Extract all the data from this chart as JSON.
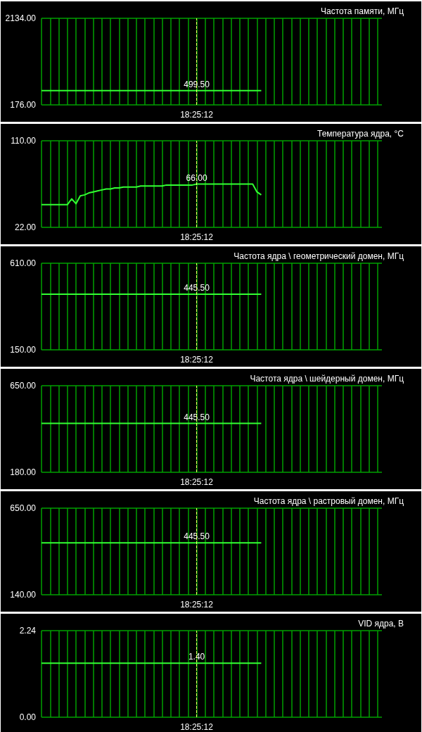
{
  "chart_data": [
    {
      "type": "line",
      "title": "Частота памяти, МГц",
      "categories": [
        null,
        null,
        null,
        null,
        null,
        null,
        null,
        null,
        null,
        null,
        null,
        null,
        null,
        null,
        null,
        null,
        null,
        null,
        null,
        null,
        null,
        null,
        null,
        null,
        null,
        null,
        null,
        null,
        null,
        null,
        null,
        null,
        null,
        null,
        null,
        null,
        "18:25:12",
        null,
        null,
        null,
        null,
        null,
        null,
        null,
        null,
        null,
        null,
        null,
        null,
        null,
        null,
        null,
        null,
        null,
        null,
        null,
        null,
        null,
        null,
        null,
        null,
        null,
        null,
        null,
        null,
        null,
        null,
        null,
        null,
        null,
        null,
        null,
        null,
        null,
        null,
        null,
        null,
        null,
        null,
        null
      ],
      "series": [
        {
          "color": "#33ff33",
          "values": [
            499.5,
            499.5,
            499.5,
            499.5,
            499.5,
            499.5,
            499.5,
            499.5,
            499.5,
            499.5,
            499.5,
            499.5,
            499.5,
            499.5,
            499.5,
            499.5,
            499.5,
            499.5,
            499.5,
            499.5,
            499.5,
            499.5,
            499.5,
            499.5,
            499.5,
            499.5,
            499.5,
            499.5,
            499.5,
            499.5,
            499.5,
            499.5,
            499.5,
            499.5,
            499.5,
            499.5,
            499.5,
            499.5,
            499.5,
            499.5,
            499.5,
            499.5,
            499.5,
            499.5,
            499.5,
            499.5,
            499.5,
            499.5,
            499.5,
            499.5,
            499.5,
            499.5,
            null,
            null,
            null,
            null,
            null,
            null,
            null,
            null,
            null,
            null,
            null,
            null,
            null,
            null,
            null,
            null,
            null,
            null,
            null,
            null,
            null,
            null,
            null,
            null,
            null,
            null,
            null,
            null
          ],
          "value_labels": [
            null,
            null,
            null,
            null,
            null,
            null,
            null,
            null,
            null,
            null,
            null,
            null,
            null,
            null,
            null,
            null,
            null,
            null,
            null,
            null,
            null,
            null,
            null,
            null,
            null,
            null,
            null,
            null,
            null,
            null,
            null,
            null,
            null,
            null,
            null,
            null,
            "499.50",
            null,
            null,
            null,
            null,
            null,
            null,
            null,
            null,
            null,
            null,
            null,
            null,
            null,
            null,
            null,
            null,
            null,
            null,
            null,
            null,
            null,
            null,
            null,
            null,
            null,
            null,
            null,
            null,
            null,
            null,
            null,
            null,
            null,
            null,
            null,
            null,
            null,
            null,
            null,
            null,
            null,
            null,
            null
          ]
        }
      ],
      "ylim": [
        176,
        2134
      ],
      "yticks": [
        {
          "value": 176,
          "label": "176.00"
        },
        {
          "value": 2134,
          "label": "2134.00"
        }
      ],
      "grid": true,
      "marker": "none",
      "line_style": "solid",
      "ref_lines": [
        {
          "axis": "x",
          "value": "18:25:12",
          "color": "#ffff66",
          "line_style": "dashed"
        }
      ]
    },
    {
      "type": "line",
      "title": "Температура ядра, °C",
      "categories": [
        null,
        null,
        null,
        null,
        null,
        null,
        null,
        null,
        null,
        null,
        null,
        null,
        null,
        null,
        null,
        null,
        null,
        null,
        null,
        null,
        null,
        null,
        null,
        null,
        null,
        null,
        null,
        null,
        null,
        null,
        null,
        null,
        null,
        null,
        null,
        null,
        "18:25:12",
        null,
        null,
        null,
        null,
        null,
        null,
        null,
        null,
        null,
        null,
        null,
        null,
        null,
        null,
        null,
        null,
        null,
        null,
        null,
        null,
        null,
        null,
        null,
        null,
        null,
        null,
        null,
        null,
        null,
        null,
        null,
        null,
        null,
        null,
        null,
        null,
        null,
        null,
        null,
        null,
        null,
        null,
        null
      ],
      "series": [
        {
          "color": "#33ff33",
          "values": [
            45,
            45,
            45,
            45,
            45,
            45,
            45,
            51,
            46,
            54,
            55,
            57,
            58,
            59,
            60,
            61,
            61,
            62,
            62,
            63,
            63,
            63,
            63,
            64,
            64,
            64,
            64,
            64,
            64,
            65,
            65,
            65,
            65,
            65,
            65,
            65,
            66,
            66,
            66,
            66,
            66,
            66,
            66,
            66,
            66,
            66,
            66,
            66,
            66,
            66,
            58,
            55,
            null,
            null,
            null,
            null,
            null,
            null,
            null,
            null,
            null,
            null,
            null,
            null,
            null,
            null,
            null,
            null,
            null,
            null,
            null,
            null,
            null,
            null,
            null,
            null,
            null,
            null,
            null,
            null
          ],
          "value_labels": [
            null,
            null,
            null,
            null,
            null,
            null,
            null,
            null,
            null,
            null,
            null,
            null,
            null,
            null,
            null,
            null,
            null,
            null,
            null,
            null,
            null,
            null,
            null,
            null,
            null,
            null,
            null,
            null,
            null,
            null,
            null,
            null,
            null,
            null,
            null,
            null,
            "66.00",
            null,
            null,
            null,
            null,
            null,
            null,
            null,
            null,
            null,
            null,
            null,
            null,
            null,
            null,
            null,
            null,
            null,
            null,
            null,
            null,
            null,
            null,
            null,
            null,
            null,
            null,
            null,
            null,
            null,
            null,
            null,
            null,
            null,
            null,
            null,
            null,
            null,
            null,
            null,
            null,
            null,
            null,
            null
          ]
        }
      ],
      "ylim": [
        22,
        110
      ],
      "yticks": [
        {
          "value": 22,
          "label": "22.00"
        },
        {
          "value": 110,
          "label": "110.00"
        }
      ],
      "grid": true,
      "marker": "none",
      "line_style": "solid",
      "ref_lines": [
        {
          "axis": "x",
          "value": "18:25:12",
          "color": "#ffff66",
          "line_style": "dashed"
        }
      ]
    },
    {
      "type": "line",
      "title": "Частота ядра \\ геометрический домен, МГц",
      "categories": [
        null,
        null,
        null,
        null,
        null,
        null,
        null,
        null,
        null,
        null,
        null,
        null,
        null,
        null,
        null,
        null,
        null,
        null,
        null,
        null,
        null,
        null,
        null,
        null,
        null,
        null,
        null,
        null,
        null,
        null,
        null,
        null,
        null,
        null,
        null,
        null,
        "18:25:12",
        null,
        null,
        null,
        null,
        null,
        null,
        null,
        null,
        null,
        null,
        null,
        null,
        null,
        null,
        null,
        null,
        null,
        null,
        null,
        null,
        null,
        null,
        null,
        null,
        null,
        null,
        null,
        null,
        null,
        null,
        null,
        null,
        null,
        null,
        null,
        null,
        null,
        null,
        null,
        null,
        null,
        null,
        null
      ],
      "series": [
        {
          "color": "#33ff33",
          "values": [
            445.5,
            445.5,
            445.5,
            445.5,
            445.5,
            445.5,
            445.5,
            445.5,
            445.5,
            445.5,
            445.5,
            445.5,
            445.5,
            445.5,
            445.5,
            445.5,
            445.5,
            445.5,
            445.5,
            445.5,
            445.5,
            445.5,
            445.5,
            445.5,
            445.5,
            445.5,
            445.5,
            445.5,
            445.5,
            445.5,
            445.5,
            445.5,
            445.5,
            445.5,
            445.5,
            445.5,
            445.5,
            445.5,
            445.5,
            445.5,
            445.5,
            445.5,
            445.5,
            445.5,
            445.5,
            445.5,
            445.5,
            445.5,
            445.5,
            445.5,
            445.5,
            445.5,
            null,
            null,
            null,
            null,
            null,
            null,
            null,
            null,
            null,
            null,
            null,
            null,
            null,
            null,
            null,
            null,
            null,
            null,
            null,
            null,
            null,
            null,
            null,
            null,
            null,
            null,
            null,
            null
          ],
          "value_labels": [
            null,
            null,
            null,
            null,
            null,
            null,
            null,
            null,
            null,
            null,
            null,
            null,
            null,
            null,
            null,
            null,
            null,
            null,
            null,
            null,
            null,
            null,
            null,
            null,
            null,
            null,
            null,
            null,
            null,
            null,
            null,
            null,
            null,
            null,
            null,
            null,
            "445.50",
            null,
            null,
            null,
            null,
            null,
            null,
            null,
            null,
            null,
            null,
            null,
            null,
            null,
            null,
            null,
            null,
            null,
            null,
            null,
            null,
            null,
            null,
            null,
            null,
            null,
            null,
            null,
            null,
            null,
            null,
            null,
            null,
            null,
            null,
            null,
            null,
            null,
            null,
            null,
            null,
            null,
            null,
            null
          ]
        }
      ],
      "ylim": [
        150,
        610
      ],
      "yticks": [
        {
          "value": 150,
          "label": "150.00"
        },
        {
          "value": 610,
          "label": "610.00"
        }
      ],
      "grid": true,
      "marker": "none",
      "line_style": "solid",
      "ref_lines": [
        {
          "axis": "x",
          "value": "18:25:12",
          "color": "#ffff66",
          "line_style": "dashed"
        }
      ]
    },
    {
      "type": "line",
      "title": "Частота ядра \\ шейдерный домен, МГц",
      "categories": [
        null,
        null,
        null,
        null,
        null,
        null,
        null,
        null,
        null,
        null,
        null,
        null,
        null,
        null,
        null,
        null,
        null,
        null,
        null,
        null,
        null,
        null,
        null,
        null,
        null,
        null,
        null,
        null,
        null,
        null,
        null,
        null,
        null,
        null,
        null,
        null,
        "18:25:12",
        null,
        null,
        null,
        null,
        null,
        null,
        null,
        null,
        null,
        null,
        null,
        null,
        null,
        null,
        null,
        null,
        null,
        null,
        null,
        null,
        null,
        null,
        null,
        null,
        null,
        null,
        null,
        null,
        null,
        null,
        null,
        null,
        null,
        null,
        null,
        null,
        null,
        null,
        null,
        null,
        null,
        null,
        null
      ],
      "series": [
        {
          "color": "#33ff33",
          "values": [
            445.5,
            445.5,
            445.5,
            445.5,
            445.5,
            445.5,
            445.5,
            445.5,
            445.5,
            445.5,
            445.5,
            445.5,
            445.5,
            445.5,
            445.5,
            445.5,
            445.5,
            445.5,
            445.5,
            445.5,
            445.5,
            445.5,
            445.5,
            445.5,
            445.5,
            445.5,
            445.5,
            445.5,
            445.5,
            445.5,
            445.5,
            445.5,
            445.5,
            445.5,
            445.5,
            445.5,
            445.5,
            445.5,
            445.5,
            445.5,
            445.5,
            445.5,
            445.5,
            445.5,
            445.5,
            445.5,
            445.5,
            445.5,
            445.5,
            445.5,
            445.5,
            445.5,
            null,
            null,
            null,
            null,
            null,
            null,
            null,
            null,
            null,
            null,
            null,
            null,
            null,
            null,
            null,
            null,
            null,
            null,
            null,
            null,
            null,
            null,
            null,
            null,
            null,
            null,
            null,
            null
          ],
          "value_labels": [
            null,
            null,
            null,
            null,
            null,
            null,
            null,
            null,
            null,
            null,
            null,
            null,
            null,
            null,
            null,
            null,
            null,
            null,
            null,
            null,
            null,
            null,
            null,
            null,
            null,
            null,
            null,
            null,
            null,
            null,
            null,
            null,
            null,
            null,
            null,
            null,
            "445.50",
            null,
            null,
            null,
            null,
            null,
            null,
            null,
            null,
            null,
            null,
            null,
            null,
            null,
            null,
            null,
            null,
            null,
            null,
            null,
            null,
            null,
            null,
            null,
            null,
            null,
            null,
            null,
            null,
            null,
            null,
            null,
            null,
            null,
            null,
            null,
            null,
            null,
            null,
            null,
            null,
            null,
            null,
            null
          ]
        }
      ],
      "ylim": [
        180,
        650
      ],
      "yticks": [
        {
          "value": 180,
          "label": "180.00"
        },
        {
          "value": 650,
          "label": "650.00"
        }
      ],
      "grid": true,
      "marker": "none",
      "line_style": "solid",
      "ref_lines": [
        {
          "axis": "x",
          "value": "18:25:12",
          "color": "#ffff66",
          "line_style": "dashed"
        }
      ]
    },
    {
      "type": "line",
      "title": "Частота ядра \\ растровый домен, МГц",
      "categories": [
        null,
        null,
        null,
        null,
        null,
        null,
        null,
        null,
        null,
        null,
        null,
        null,
        null,
        null,
        null,
        null,
        null,
        null,
        null,
        null,
        null,
        null,
        null,
        null,
        null,
        null,
        null,
        null,
        null,
        null,
        null,
        null,
        null,
        null,
        null,
        null,
        "18:25:12",
        null,
        null,
        null,
        null,
        null,
        null,
        null,
        null,
        null,
        null,
        null,
        null,
        null,
        null,
        null,
        null,
        null,
        null,
        null,
        null,
        null,
        null,
        null,
        null,
        null,
        null,
        null,
        null,
        null,
        null,
        null,
        null,
        null,
        null,
        null,
        null,
        null,
        null,
        null,
        null,
        null,
        null,
        null
      ],
      "series": [
        {
          "color": "#33ff33",
          "values": [
            445.5,
            445.5,
            445.5,
            445.5,
            445.5,
            445.5,
            445.5,
            445.5,
            445.5,
            445.5,
            445.5,
            445.5,
            445.5,
            445.5,
            445.5,
            445.5,
            445.5,
            445.5,
            445.5,
            445.5,
            445.5,
            445.5,
            445.5,
            445.5,
            445.5,
            445.5,
            445.5,
            445.5,
            445.5,
            445.5,
            445.5,
            445.5,
            445.5,
            445.5,
            445.5,
            445.5,
            445.5,
            445.5,
            445.5,
            445.5,
            445.5,
            445.5,
            445.5,
            445.5,
            445.5,
            445.5,
            445.5,
            445.5,
            445.5,
            445.5,
            445.5,
            445.5,
            null,
            null,
            null,
            null,
            null,
            null,
            null,
            null,
            null,
            null,
            null,
            null,
            null,
            null,
            null,
            null,
            null,
            null,
            null,
            null,
            null,
            null,
            null,
            null,
            null,
            null,
            null,
            null
          ],
          "value_labels": [
            null,
            null,
            null,
            null,
            null,
            null,
            null,
            null,
            null,
            null,
            null,
            null,
            null,
            null,
            null,
            null,
            null,
            null,
            null,
            null,
            null,
            null,
            null,
            null,
            null,
            null,
            null,
            null,
            null,
            null,
            null,
            null,
            null,
            null,
            null,
            null,
            "445.50",
            null,
            null,
            null,
            null,
            null,
            null,
            null,
            null,
            null,
            null,
            null,
            null,
            null,
            null,
            null,
            null,
            null,
            null,
            null,
            null,
            null,
            null,
            null,
            null,
            null,
            null,
            null,
            null,
            null,
            null,
            null,
            null,
            null,
            null,
            null,
            null,
            null,
            null,
            null,
            null,
            null,
            null,
            null
          ]
        }
      ],
      "ylim": [
        140,
        650
      ],
      "yticks": [
        {
          "value": 140,
          "label": "140.00"
        },
        {
          "value": 650,
          "label": "650.00"
        }
      ],
      "grid": true,
      "marker": "none",
      "line_style": "solid",
      "ref_lines": [
        {
          "axis": "x",
          "value": "18:25:12",
          "color": "#ffff66",
          "line_style": "dashed"
        }
      ]
    },
    {
      "type": "line",
      "title": "VID ядра, В",
      "categories": [
        null,
        null,
        null,
        null,
        null,
        null,
        null,
        null,
        null,
        null,
        null,
        null,
        null,
        null,
        null,
        null,
        null,
        null,
        null,
        null,
        null,
        null,
        null,
        null,
        null,
        null,
        null,
        null,
        null,
        null,
        null,
        null,
        null,
        null,
        null,
        null,
        "18:25:12",
        null,
        null,
        null,
        null,
        null,
        null,
        null,
        null,
        null,
        null,
        null,
        null,
        null,
        null,
        null,
        null,
        null,
        null,
        null,
        null,
        null,
        null,
        null,
        null,
        null,
        null,
        null,
        null,
        null,
        null,
        null,
        null,
        null,
        null,
        null,
        null,
        null,
        null,
        null,
        null,
        null,
        null,
        null
      ],
      "series": [
        {
          "color": "#33ff33",
          "values": [
            1.4,
            1.4,
            1.4,
            1.4,
            1.4,
            1.4,
            1.4,
            1.4,
            1.4,
            1.4,
            1.4,
            1.4,
            1.4,
            1.4,
            1.4,
            1.4,
            1.4,
            1.4,
            1.4,
            1.4,
            1.4,
            1.4,
            1.4,
            1.4,
            1.4,
            1.4,
            1.4,
            1.4,
            1.4,
            1.4,
            1.4,
            1.4,
            1.4,
            1.4,
            1.4,
            1.4,
            1.4,
            1.4,
            1.4,
            1.4,
            1.4,
            1.4,
            1.4,
            1.4,
            1.4,
            1.4,
            1.4,
            1.4,
            1.4,
            1.4,
            1.4,
            1.4,
            null,
            null,
            null,
            null,
            null,
            null,
            null,
            null,
            null,
            null,
            null,
            null,
            null,
            null,
            null,
            null,
            null,
            null,
            null,
            null,
            null,
            null,
            null,
            null,
            null,
            null,
            null,
            null
          ],
          "value_labels": [
            null,
            null,
            null,
            null,
            null,
            null,
            null,
            null,
            null,
            null,
            null,
            null,
            null,
            null,
            null,
            null,
            null,
            null,
            null,
            null,
            null,
            null,
            null,
            null,
            null,
            null,
            null,
            null,
            null,
            null,
            null,
            null,
            null,
            null,
            null,
            null,
            "1.40",
            null,
            null,
            null,
            null,
            null,
            null,
            null,
            null,
            null,
            null,
            null,
            null,
            null,
            null,
            null,
            null,
            null,
            null,
            null,
            null,
            null,
            null,
            null,
            null,
            null,
            null,
            null,
            null,
            null,
            null,
            null,
            null,
            null,
            null,
            null,
            null,
            null,
            null,
            null,
            null,
            null,
            null,
            null
          ]
        }
      ],
      "ylim": [
        0,
        2.24
      ],
      "yticks": [
        {
          "value": 0,
          "label": "0.00"
        },
        {
          "value": 2.24,
          "label": "2.24"
        }
      ],
      "grid": true,
      "marker": "none",
      "line_style": "solid",
      "ref_lines": [
        {
          "axis": "x",
          "value": "18:25:12",
          "color": "#ffff66",
          "line_style": "dashed"
        }
      ]
    }
  ]
}
